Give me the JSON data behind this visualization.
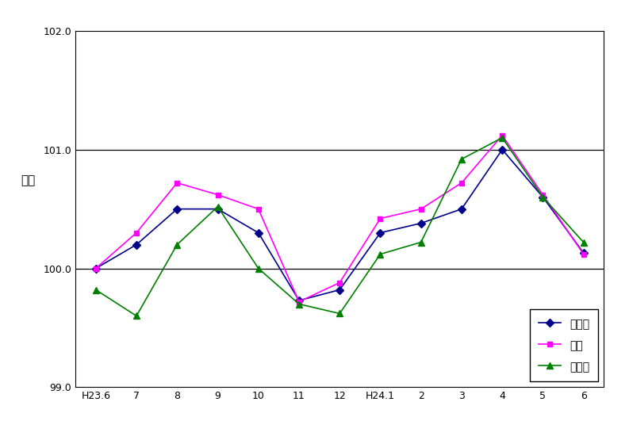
{
  "x_labels": [
    "H23.6",
    "7",
    "8",
    "9",
    "10",
    "11",
    "12",
    "H24.1",
    "2",
    "3",
    "4",
    "5",
    "6"
  ],
  "mie": [
    100.0,
    100.2,
    100.5,
    100.5,
    100.3,
    99.73,
    99.82,
    100.3,
    100.38,
    100.5,
    101.0,
    100.6,
    100.13
  ],
  "tsu": [
    100.0,
    100.3,
    100.72,
    100.62,
    100.5,
    99.72,
    99.88,
    100.42,
    100.5,
    100.72,
    101.12,
    100.62,
    100.12
  ],
  "matsusaka": [
    99.82,
    99.6,
    100.2,
    100.52,
    100.0,
    99.7,
    99.62,
    100.12,
    100.22,
    100.92,
    101.1,
    100.6,
    100.22
  ],
  "ylim": [
    99.0,
    102.0
  ],
  "yticks": [
    99.0,
    100.0,
    101.0,
    102.0
  ],
  "ytick_labels": [
    "99.0",
    "100.0",
    "101.0",
    "102.0"
  ],
  "ylabel": "指数",
  "mie_color": "#00008B",
  "tsu_color": "#FF00FF",
  "matsusaka_color": "#008000",
  "mie_label": "三重県",
  "tsu_label": "津市",
  "matsusaka_label": "松阪市",
  "hline_values": [
    100.0,
    101.0
  ],
  "hline_color": "#000000",
  "background_color": "#ffffff"
}
